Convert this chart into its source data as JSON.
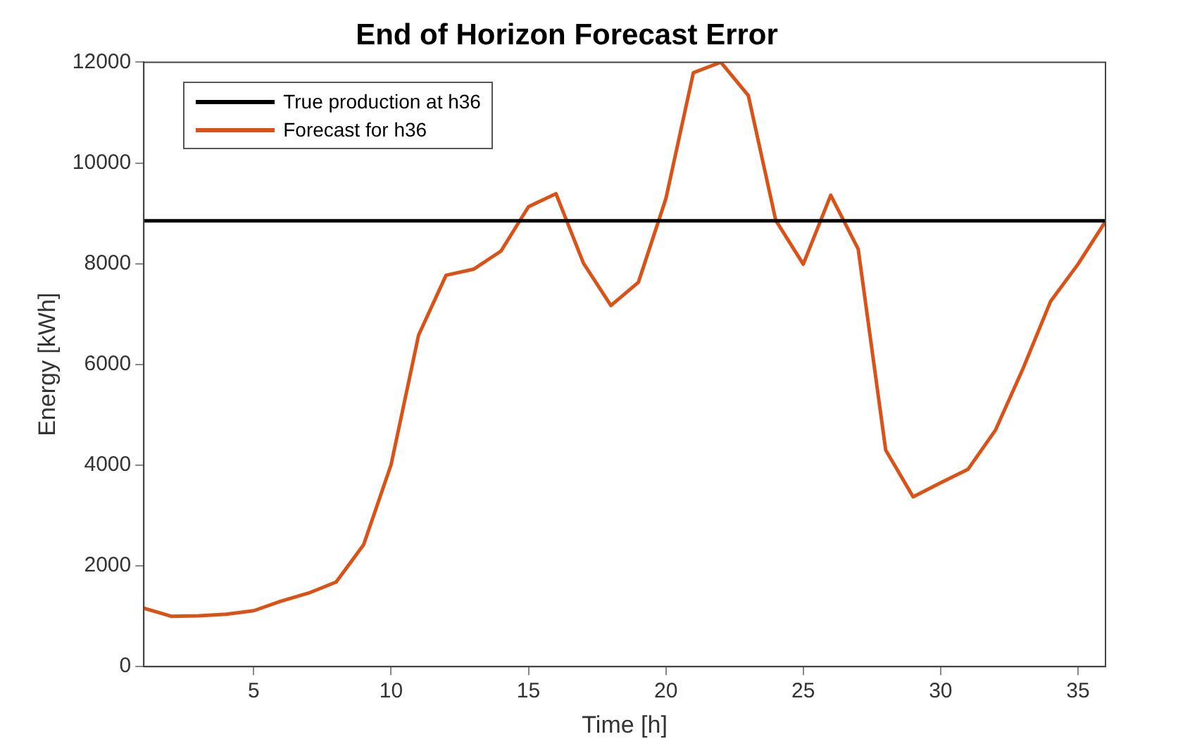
{
  "chart_data": {
    "type": "line",
    "title": "End of Horizon Forecast Error",
    "xlabel": "Time [h]",
    "ylabel": "Energy [kWh]",
    "x": [
      1,
      2,
      3,
      4,
      5,
      6,
      7,
      8,
      9,
      10,
      11,
      12,
      13,
      14,
      15,
      16,
      17,
      18,
      19,
      20,
      21,
      22,
      23,
      24,
      25,
      26,
      27,
      28,
      29,
      30,
      31,
      32,
      33,
      34,
      35,
      36
    ],
    "series": [
      {
        "name": "True production at h36",
        "color": "#000000",
        "values": [
          8850,
          8850,
          8850,
          8850,
          8850,
          8850,
          8850,
          8850,
          8850,
          8850,
          8850,
          8850,
          8850,
          8850,
          8850,
          8850,
          8850,
          8850,
          8850,
          8850,
          8850,
          8850,
          8850,
          8850,
          8850,
          8850,
          8850,
          8850,
          8850,
          8850,
          8850,
          8850,
          8850,
          8850,
          8850,
          8850
        ]
      },
      {
        "name": "Forecast for h36",
        "color": "#d95319",
        "values": [
          1160,
          1000,
          1010,
          1040,
          1110,
          1300,
          1460,
          1680,
          2420,
          4010,
          6580,
          7770,
          7890,
          8250,
          9130,
          9390,
          8010,
          7170,
          7630,
          9290,
          11790,
          12000,
          11340,
          8860,
          7990,
          9360,
          8290,
          4300,
          3370,
          3650,
          3920,
          4700,
          5920,
          7250,
          7990,
          8840
        ]
      }
    ],
    "xlim": [
      1,
      36
    ],
    "xticks": [
      5,
      10,
      15,
      20,
      25,
      30,
      35
    ],
    "ylim": [
      0,
      12000
    ],
    "yticks": [
      0,
      2000,
      4000,
      6000,
      8000,
      10000,
      12000
    ],
    "grid": false,
    "legend": "top left",
    "marker": "none",
    "line_style": "solid"
  }
}
